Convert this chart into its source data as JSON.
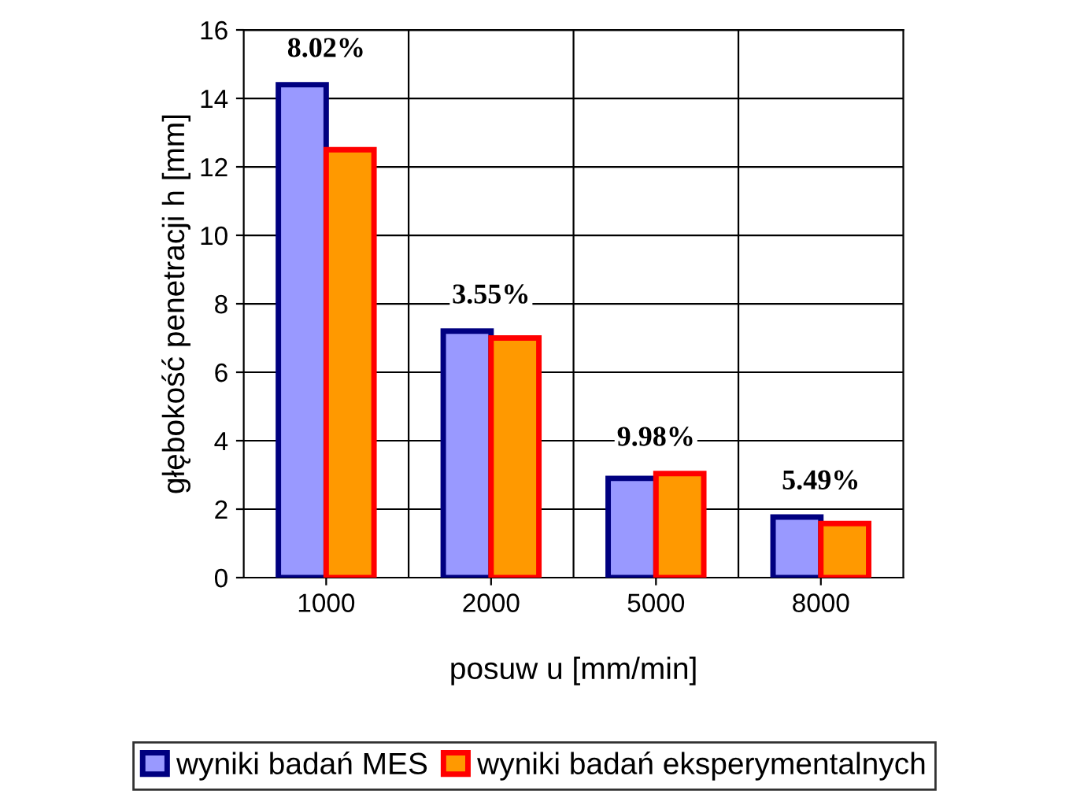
{
  "chart_data": {
    "type": "bar",
    "xlabel": "posuw u [mm/min]",
    "ylabel": "głębokość penetracji h [mm]",
    "categories": [
      "1000",
      "2000",
      "5000",
      "8000"
    ],
    "series": [
      {
        "name": "wyniki badań MES",
        "color": "#9999ff",
        "values": [
          14.4,
          7.2,
          2.9,
          1.77
        ]
      },
      {
        "name": "wyniki badań eksperymentalnych",
        "color": "#ff9900",
        "values": [
          12.5,
          7.0,
          3.04,
          1.58
        ]
      }
    ],
    "ylim": [
      0,
      16
    ],
    "yticks": [
      0,
      2,
      4,
      6,
      8,
      10,
      12,
      14,
      16
    ],
    "grid": true,
    "legend": "bottom",
    "annotations": [
      {
        "text": "8.02%",
        "x": "1000",
        "y": 14.4
      },
      {
        "text": "3.55%",
        "x": "2000",
        "y": 7.2
      },
      {
        "text": "9.98%",
        "x": "5000",
        "y": 3.04
      },
      {
        "text": "5.49%",
        "x": "8000",
        "y": 1.77
      }
    ]
  }
}
